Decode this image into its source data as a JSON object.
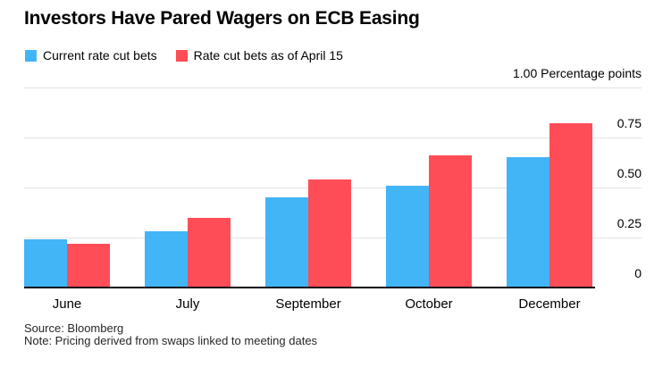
{
  "title": "Investors Have Pared Wagers on ECB Easing",
  "legend": [
    {
      "label": "Current rate cut bets",
      "color": "#42B5F7"
    },
    {
      "label": "Rate cut bets as of April 15",
      "color": "#FF4D58"
    }
  ],
  "footer": {
    "source": "Source: Bloomberg",
    "note": "Note: Pricing derived from swaps linked to meeting dates"
  },
  "colors": {
    "current_series": "#42B5F7",
    "april15_series": "#FF4D58",
    "gridline": "#e3e3e3",
    "axis": "#0a0a0a"
  },
  "chart_data": {
    "type": "bar",
    "categories": [
      "June",
      "July",
      "September",
      "October",
      "December"
    ],
    "series": [
      {
        "name": "Current rate cut bets",
        "color": "#42B5F7",
        "values": [
          0.24,
          0.28,
          0.45,
          0.51,
          0.65
        ]
      },
      {
        "name": "Rate cut bets as of April 15",
        "color": "#FF4D58",
        "values": [
          0.22,
          0.35,
          0.54,
          0.66,
          0.82
        ]
      }
    ],
    "ylabel": "Percentage points",
    "ylim": [
      0,
      1.0
    ],
    "y_ticks": [
      0,
      0.25,
      0.5,
      0.75,
      1.0
    ],
    "y_tick_labels": [
      "0",
      "0.25",
      "0.50",
      "0.75",
      "1.00 Percentage points"
    ],
    "grid": "horizontal",
    "legend_position": "top-left",
    "title": "Investors Have Pared Wagers on ECB Easing"
  }
}
